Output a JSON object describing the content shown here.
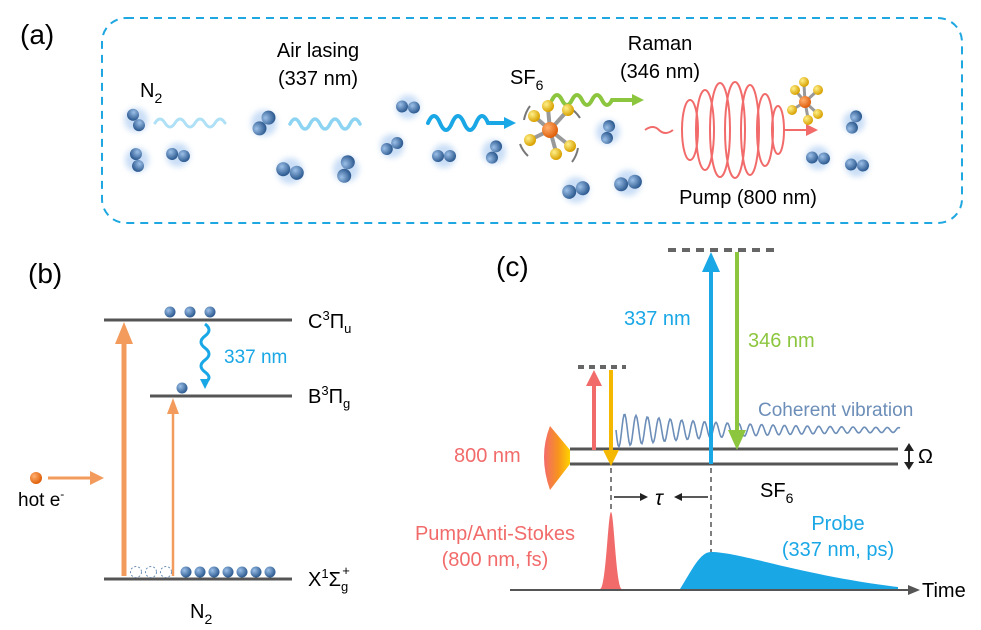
{
  "colors": {
    "blue": "#19a7e6",
    "green": "#8cc63f",
    "red": "#f26b6b",
    "orange": "#f39b5c",
    "yellow": "#f5b800",
    "gray": "#555555",
    "dashed_border": "#1ea7e0",
    "molecule": "#3f6fa5",
    "vibration": "#6c8eb8"
  },
  "panel_a": {
    "label": "(a)",
    "n2_label": "N",
    "n2_sub": "2",
    "air_lasing_line1": "Air lasing",
    "air_lasing_line2": "(337 nm)",
    "sf6_label": "SF",
    "sf6_sub": "6",
    "raman_line1": "Raman",
    "raman_line2": "(346 nm)",
    "pump_label": "Pump (800 nm)"
  },
  "panel_b": {
    "label": "(b)",
    "c_state": "C",
    "c_sup": "3",
    "c_sym": "Π",
    "c_sub": "u",
    "b_state": "B",
    "b_sup": "3",
    "b_sym": "Π",
    "b_sub": "g",
    "x_state": "X",
    "x_sup": "1",
    "x_sym": "Σ",
    "x_sub": "g",
    "x_plus": "+",
    "emission": "337 nm",
    "hot_e": "hot e",
    "hot_e_sup": "-",
    "n2_label": "N",
    "n2_sub": "2"
  },
  "panel_c": {
    "label": "(c)",
    "wl_337": "337 nm",
    "wl_346": "346 nm",
    "wl_800": "800 nm",
    "coherent": "Coherent vibration",
    "omega": "Ω",
    "sf6_label": "SF",
    "sf6_sub": "6",
    "tau": "τ",
    "pump_line1": "Pump/Anti-Stokes",
    "pump_line2": "(800 nm, fs)",
    "probe_line1": "Probe",
    "probe_line2": "(337 nm, ps)",
    "time_label": "Time"
  }
}
